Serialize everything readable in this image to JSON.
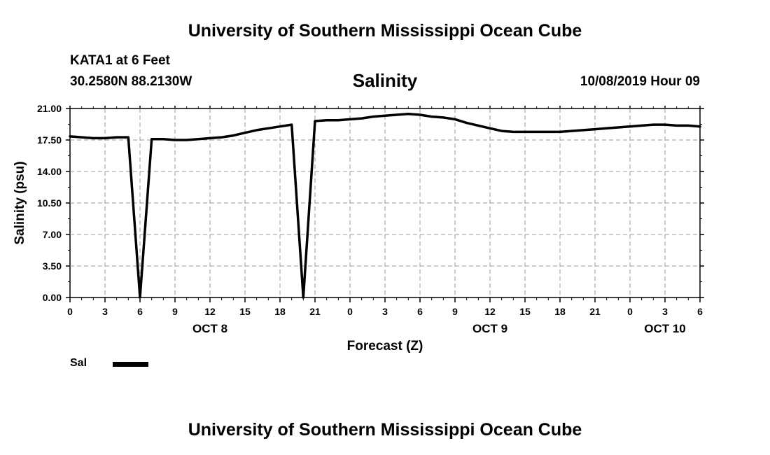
{
  "header": {
    "top_title": "University of Southern Mississippi Ocean Cube",
    "station": "KATA1 at 6 Feet",
    "coords": "30.2580N 88.2130W",
    "run_time": "10/08/2019 Hour 09"
  },
  "footer": {
    "bottom_title": "University of Southern Mississippi Ocean Cube"
  },
  "legend": {
    "label": "Sal",
    "color": "#000000"
  },
  "chart_data": {
    "type": "line",
    "title": "Salinity",
    "xlabel": "Forecast (Z)",
    "ylabel": "Salinity (psu)",
    "ylim": [
      0,
      21
    ],
    "yticks": [
      "0.00",
      "3.50",
      "7.00",
      "10.50",
      "14.00",
      "17.50",
      "21.00"
    ],
    "xlim": [
      0,
      54
    ],
    "x_tick_labels": [
      "0",
      "3",
      "6",
      "9",
      "12",
      "15",
      "18",
      "21",
      "0",
      "3",
      "6",
      "9",
      "12",
      "15",
      "18",
      "21",
      "0",
      "3",
      "6"
    ],
    "date_labels": [
      {
        "label": "OCT 8",
        "at_hour": 12
      },
      {
        "label": "OCT 9",
        "at_hour": 36
      },
      {
        "label": "OCT 10",
        "at_hour": 51
      }
    ],
    "grid": true,
    "series": [
      {
        "name": "Sal",
        "color": "#000000",
        "x": [
          0,
          1,
          2,
          3,
          4,
          5,
          6,
          7,
          8,
          9,
          10,
          11,
          12,
          13,
          14,
          15,
          16,
          17,
          18,
          19,
          20,
          21,
          22,
          23,
          24,
          25,
          26,
          27,
          28,
          29,
          30,
          31,
          32,
          33,
          34,
          35,
          36,
          37,
          38,
          39,
          40,
          41,
          42,
          43,
          44,
          45,
          46,
          47,
          48,
          49,
          50,
          51,
          52,
          53,
          54
        ],
        "y": [
          17.9,
          17.8,
          17.7,
          17.7,
          17.8,
          17.8,
          0,
          17.6,
          17.6,
          17.5,
          17.5,
          17.6,
          17.7,
          17.8,
          18.0,
          18.3,
          18.6,
          18.8,
          19.0,
          19.2,
          0,
          19.6,
          19.7,
          19.7,
          19.8,
          19.9,
          20.1,
          20.2,
          20.3,
          20.4,
          20.3,
          20.1,
          20.0,
          19.8,
          19.4,
          19.1,
          18.8,
          18.5,
          18.4,
          18.4,
          18.4,
          18.4,
          18.4,
          18.5,
          18.6,
          18.7,
          18.8,
          18.9,
          19.0,
          19.1,
          19.2,
          19.2,
          19.1,
          19.1,
          19.0
        ]
      }
    ]
  }
}
